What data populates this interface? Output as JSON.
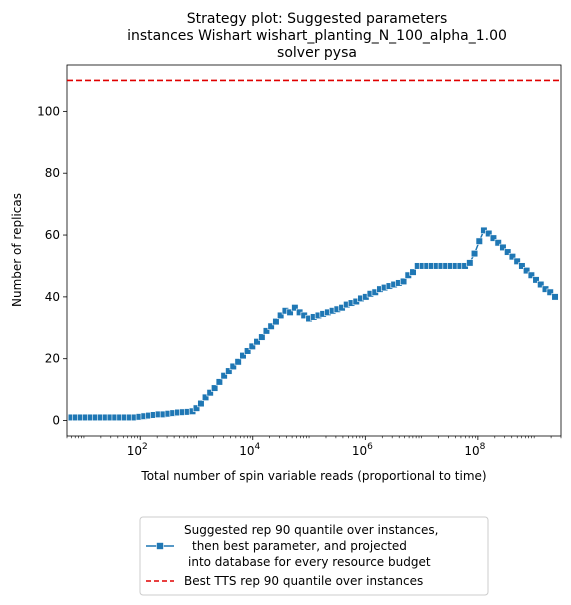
{
  "chart_data": {
    "type": "line",
    "title_lines": [
      "Strategy plot: Suggested parameters",
      "instances Wishart wishart_planting_N_100_alpha_1.00",
      "solver pysa"
    ],
    "xlabel": "Total number of spin variable reads (proportional to time)",
    "ylabel": "Number of replicas",
    "xscale": "log",
    "xlim": [
      5.0,
      3000000000
    ],
    "ylim": [
      -5,
      115
    ],
    "x_ticks": [
      {
        "value": 100,
        "base": "10",
        "exp": "2"
      },
      {
        "value": 10000,
        "base": "10",
        "exp": "4"
      },
      {
        "value": 1000000,
        "base": "10",
        "exp": "6"
      },
      {
        "value": 100000000,
        "base": "10",
        "exp": "8"
      }
    ],
    "y_ticks": [
      "0",
      "20",
      "40",
      "60",
      "80",
      "100"
    ],
    "y_tick_values": [
      0,
      20,
      40,
      60,
      80,
      100
    ],
    "grid": false,
    "legend_position": "below",
    "series": [
      {
        "name_lines": [
          "Suggested rep 90 quantile over instances,",
          "then best parameter, and projected",
          "into database for every resource budget"
        ],
        "color": "#1f77b4",
        "marker": "square",
        "line_style": "solid",
        "points": [
          [
            6.0,
            1
          ],
          [
            7.2,
            1
          ],
          [
            8.8,
            1
          ],
          [
            10.8,
            1
          ],
          [
            13.3,
            1
          ],
          [
            16.3,
            1
          ],
          [
            20,
            1
          ],
          [
            24.3,
            1
          ],
          [
            29.6,
            1
          ],
          [
            36.0,
            1
          ],
          [
            43.9,
            1
          ],
          [
            53.4,
            1
          ],
          [
            65,
            1
          ],
          [
            79.3,
            1
          ],
          [
            96.7,
            1.2
          ],
          [
            118,
            1.4
          ],
          [
            143,
            1.6
          ],
          [
            174,
            1.8
          ],
          [
            212,
            2
          ],
          [
            259,
            2
          ],
          [
            316,
            2.2
          ],
          [
            385,
            2.4
          ],
          [
            469,
            2.6
          ],
          [
            572,
            2.7
          ],
          [
            697,
            2.8
          ],
          [
            850,
            3
          ],
          [
            1000,
            4
          ],
          [
            1200,
            5.5
          ],
          [
            1450,
            7.5
          ],
          [
            1750,
            9
          ],
          [
            2100,
            10.5
          ],
          [
            2550,
            12.5
          ],
          [
            3100,
            14.5
          ],
          [
            3750,
            16
          ],
          [
            4500,
            17.5
          ],
          [
            5500,
            19
          ],
          [
            6700,
            21
          ],
          [
            8100,
            22.5
          ],
          [
            9800,
            24
          ],
          [
            11900,
            25.5
          ],
          [
            14500,
            27
          ],
          [
            17500,
            29
          ],
          [
            21200,
            30.5
          ],
          [
            25800,
            32
          ],
          [
            31300,
            34
          ],
          [
            38000,
            35.5
          ],
          [
            46000,
            35
          ],
          [
            56000,
            36.5
          ],
          [
            68000,
            35
          ],
          [
            82000,
            34
          ],
          [
            100000,
            33
          ],
          [
            121000,
            33.5
          ],
          [
            147000,
            34
          ],
          [
            178000,
            34.5
          ],
          [
            216000,
            35
          ],
          [
            262000,
            35.5
          ],
          [
            318000,
            36
          ],
          [
            386000,
            36.5
          ],
          [
            468000,
            37.5
          ],
          [
            568000,
            38
          ],
          [
            690000,
            38.5
          ],
          [
            837000,
            39.5
          ],
          [
            1020000,
            40
          ],
          [
            1230000,
            41
          ],
          [
            1500000,
            41.5
          ],
          [
            1820000,
            42.5
          ],
          [
            2200000,
            43
          ],
          [
            2680000,
            43.5
          ],
          [
            3250000,
            44
          ],
          [
            3940000,
            44.5
          ],
          [
            4780000,
            45
          ],
          [
            5800000,
            47
          ],
          [
            7040000,
            48
          ],
          [
            8550000,
            50
          ],
          [
            10400000,
            50
          ],
          [
            12600000,
            50
          ],
          [
            15300000,
            50
          ],
          [
            18500000,
            50
          ],
          [
            22500000,
            50
          ],
          [
            27300000,
            50
          ],
          [
            33100000,
            50
          ],
          [
            40200000,
            50
          ],
          [
            48800000,
            50
          ],
          [
            59200000,
            50
          ],
          [
            71900000,
            51
          ],
          [
            87200000,
            54
          ],
          [
            106000000,
            58
          ],
          [
            128000000,
            61.5
          ],
          [
            156000000,
            60.5
          ],
          [
            189000000,
            59
          ],
          [
            230000000,
            57.5
          ],
          [
            279000000,
            56
          ],
          [
            339000000,
            54.5
          ],
          [
            411000000,
            53
          ],
          [
            499000000,
            51.5
          ],
          [
            606000000,
            50
          ],
          [
            735000000,
            48.5
          ],
          [
            892000000,
            47
          ],
          [
            1080000000,
            45.5
          ],
          [
            1310000000,
            44
          ],
          [
            1590000000,
            42.5
          ],
          [
            1930000000,
            41.5
          ],
          [
            2350000000,
            40
          ]
        ]
      },
      {
        "name": "Best TTS rep 90 quantile over instances",
        "color": "#e00000",
        "line_style": "dashed",
        "hline": 110
      }
    ]
  }
}
